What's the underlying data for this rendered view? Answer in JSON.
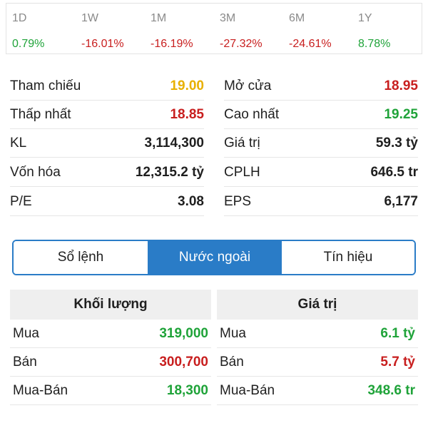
{
  "performance": [
    {
      "label": "1D",
      "value": "0.79%",
      "trend": "up"
    },
    {
      "label": "1W",
      "value": "-16.01%",
      "trend": "down"
    },
    {
      "label": "1M",
      "value": "-16.19%",
      "trend": "down"
    },
    {
      "label": "3M",
      "value": "-27.32%",
      "trend": "down"
    },
    {
      "label": "6M",
      "value": "-24.61%",
      "trend": "down"
    },
    {
      "label": "1Y",
      "value": "8.78%",
      "trend": "up"
    }
  ],
  "stats": {
    "left": [
      {
        "label": "Tham chiếu",
        "value": "19.00",
        "tone": "ref"
      },
      {
        "label": "Thấp nhất",
        "value": "18.85",
        "tone": "neg"
      },
      {
        "label": "KL",
        "value": "3,114,300",
        "tone": "dark"
      },
      {
        "label": "Vốn hóa",
        "value": "12,315.2 tỷ",
        "tone": "dark"
      },
      {
        "label": "P/E",
        "value": "3.08",
        "tone": "dark"
      }
    ],
    "right": [
      {
        "label": "Mở cửa",
        "value": "18.95",
        "tone": "neg"
      },
      {
        "label": "Cao nhất",
        "value": "19.25",
        "tone": "pos"
      },
      {
        "label": "Giá trị",
        "value": "59.3 tỷ",
        "tone": "dark"
      },
      {
        "label": "CPLH",
        "value": "646.5 tr",
        "tone": "dark"
      },
      {
        "label": "EPS",
        "value": "6,177",
        "tone": "dark"
      }
    ]
  },
  "tabs": [
    {
      "label": "Sổ lệnh",
      "active": false
    },
    {
      "label": "Nước ngoài",
      "active": true
    },
    {
      "label": "Tín hiệu",
      "active": false
    }
  ],
  "foreign": {
    "volume": {
      "title": "Khối lượng",
      "rows": [
        {
          "label": "Mua",
          "value": "319,000",
          "tone": "pos"
        },
        {
          "label": "Bán",
          "value": "300,700",
          "tone": "neg"
        },
        {
          "label": "Mua-Bán",
          "value": "18,300",
          "tone": "pos"
        }
      ]
    },
    "value": {
      "title": "Giá trị",
      "rows": [
        {
          "label": "Mua",
          "value": "6.1 tỷ",
          "tone": "pos"
        },
        {
          "label": "Bán",
          "value": "5.7 tỷ",
          "tone": "neg"
        },
        {
          "label": "Mua-Bán",
          "value": "348.6 tr",
          "tone": "pos"
        }
      ]
    }
  },
  "colors": {
    "up": "#1fa339",
    "down": "#c81e1e",
    "reference": "#e8b000",
    "accent": "#2a7cc7"
  }
}
